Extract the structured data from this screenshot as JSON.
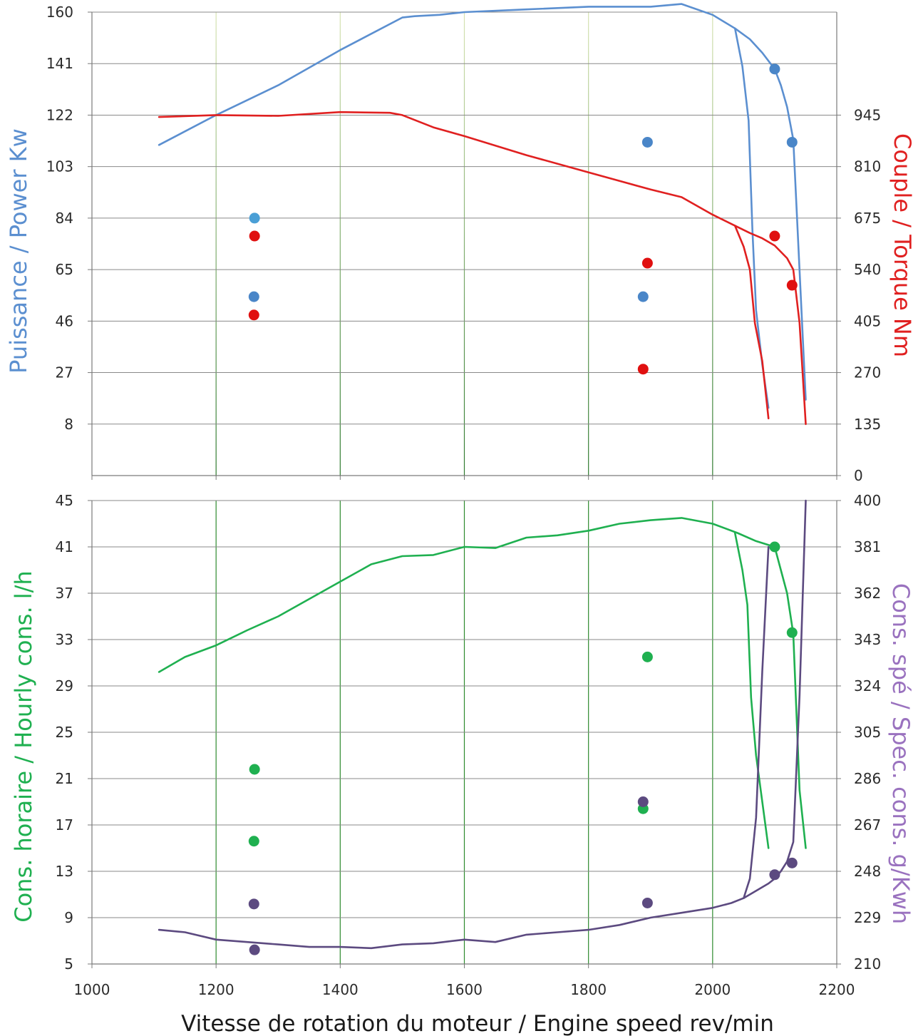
{
  "chart_data": [
    {
      "type": "line",
      "xlabel": "",
      "ylabel_left": "Puissance / Power Kw",
      "ylabel_right": "Couple / Torque Nm",
      "xlim": [
        1000,
        2200
      ],
      "ylim_left": [
        -11,
        160
      ],
      "ylim_right": [
        0,
        1215
      ],
      "left_ticks": [
        "160",
        "141",
        "122",
        "103",
        "84",
        "65",
        "46",
        "27",
        "8"
      ],
      "left_tick_values": [
        160,
        141,
        122,
        103,
        84,
        65,
        46,
        27,
        8
      ],
      "right_ticks": [
        "945",
        "810",
        "675",
        "540",
        "405",
        "270",
        "135",
        "0"
      ],
      "right_tick_values": [
        945,
        810,
        675,
        540,
        405,
        270,
        135,
        0
      ],
      "grid": true,
      "series": [
        {
          "axis": "left",
          "color": "#5b8fd0",
          "x": [
            1108,
            1200,
            1300,
            1400,
            1500,
            1520,
            1560,
            1600,
            1700,
            1800,
            1900,
            1950,
            2000,
            2036,
            2060,
            2080,
            2100,
            2110,
            2120,
            2130,
            2150
          ],
          "y": [
            111,
            122,
            133,
            146,
            158,
            158.5,
            159,
            160,
            161,
            162,
            162,
            163,
            159,
            154,
            150,
            145,
            139,
            133,
            125,
            113,
            17
          ]
        },
        {
          "axis": "left",
          "color": "#5b8fd0",
          "x": [
            2036,
            2048,
            2058,
            2064,
            2070,
            2080,
            2090
          ],
          "y": [
            154,
            140,
            120,
            80,
            50,
            30,
            14
          ]
        },
        {
          "axis": "right",
          "color": "#e02020",
          "x": [
            1108,
            1200,
            1300,
            1400,
            1480,
            1500,
            1550,
            1600,
            1700,
            1800,
            1900,
            1950,
            2000,
            2036,
            2060,
            2080,
            2100,
            2120,
            2130,
            2140,
            2150
          ],
          "y": [
            940,
            945,
            943,
            953,
            951,
            945,
            913,
            890,
            840,
            795,
            750,
            730,
            684,
            655,
            636,
            622,
            603,
            570,
            540,
            400,
            135
          ]
        },
        {
          "axis": "right",
          "color": "#e02020",
          "x": [
            2036,
            2050,
            2060,
            2068,
            2080,
            2090
          ],
          "y": [
            655,
            600,
            540,
            400,
            300,
            150
          ]
        }
      ],
      "points": [
        {
          "x": 1262,
          "y": 84,
          "axis": "left",
          "color": "#4a9fd6"
        },
        {
          "x": 1261,
          "y": 55,
          "axis": "left",
          "color": "#4a86c8"
        },
        {
          "x": 1895,
          "y": 112,
          "axis": "left",
          "color": "#4a86c8"
        },
        {
          "x": 1888,
          "y": 55,
          "axis": "left",
          "color": "#4a86c8"
        },
        {
          "x": 2100,
          "y": 139,
          "axis": "left",
          "color": "#4a86c8"
        },
        {
          "x": 2128,
          "y": 112,
          "axis": "left",
          "color": "#4a86c8"
        },
        {
          "x": 1262,
          "y": 628,
          "axis": "right",
          "color": "#e01010"
        },
        {
          "x": 1261,
          "y": 421,
          "axis": "right",
          "color": "#e01010"
        },
        {
          "x": 1895,
          "y": 557,
          "axis": "right",
          "color": "#e01010"
        },
        {
          "x": 1888,
          "y": 279,
          "axis": "right",
          "color": "#e01010"
        },
        {
          "x": 2100,
          "y": 628,
          "axis": "right",
          "color": "#e01010"
        },
        {
          "x": 2128,
          "y": 499,
          "axis": "right",
          "color": "#e01010"
        }
      ]
    },
    {
      "type": "line",
      "xlabel": "Vitesse de rotation du moteur / Engine speed rev/min",
      "ylabel_left": "Cons. horaire / Hourly cons. l/h",
      "ylabel_right": "Cons. spé / Spec. cons. g/Kwh",
      "xlim": [
        1000,
        2200
      ],
      "ylim_left": [
        5,
        45
      ],
      "ylim_right": [
        210,
        400
      ],
      "x_ticks": [
        "1000",
        "1200",
        "1400",
        "1600",
        "1800",
        "2000",
        "2200"
      ],
      "x_tick_values": [
        1000,
        1200,
        1400,
        1600,
        1800,
        2000,
        2200
      ],
      "left_ticks": [
        "45",
        "41",
        "37",
        "33",
        "29",
        "25",
        "21",
        "17",
        "13",
        "9",
        "5"
      ],
      "left_tick_values": [
        45,
        41,
        37,
        33,
        29,
        25,
        21,
        17,
        13,
        9,
        5
      ],
      "right_ticks": [
        "400",
        "381",
        "362",
        "343",
        "324",
        "305",
        "286",
        "267",
        "248",
        "229",
        "210"
      ],
      "right_tick_values": [
        400,
        381,
        362,
        343,
        324,
        305,
        286,
        267,
        248,
        229,
        210
      ],
      "grid": true,
      "series": [
        {
          "axis": "left",
          "color": "#1fb050",
          "x": [
            1108,
            1150,
            1200,
            1250,
            1300,
            1350,
            1400,
            1450,
            1500,
            1550,
            1600,
            1650,
            1700,
            1750,
            1800,
            1850,
            1900,
            1950,
            2000,
            2040,
            2070,
            2100,
            2110,
            2120,
            2130,
            2140,
            2150
          ],
          "y": [
            30.2,
            31.5,
            32.5,
            33.8,
            35,
            36.5,
            38,
            39.5,
            40.2,
            40.3,
            41,
            40.9,
            41.8,
            42,
            42.4,
            43,
            43.3,
            43.5,
            43,
            42.2,
            41.5,
            41,
            39,
            37,
            33.5,
            20,
            15
          ]
        },
        {
          "axis": "left",
          "color": "#1fb050",
          "x": [
            2036,
            2048,
            2056,
            2062,
            2070,
            2090
          ],
          "y": [
            42.2,
            39,
            36,
            28,
            23,
            15
          ]
        },
        {
          "axis": "right",
          "color": "#5c4a80",
          "x": [
            1108,
            1150,
            1200,
            1250,
            1300,
            1350,
            1400,
            1450,
            1500,
            1550,
            1600,
            1650,
            1700,
            1750,
            1800,
            1850,
            1900,
            1950,
            2000,
            2030,
            2050,
            2070,
            2090,
            2100,
            2110,
            2120,
            2130,
            2140,
            2150
          ],
          "y": [
            224,
            223,
            220,
            219,
            218,
            217,
            217,
            216.5,
            218,
            218.5,
            220,
            219,
            222,
            223,
            224,
            226,
            229,
            231,
            233,
            235,
            237,
            240,
            243,
            245,
            248,
            252,
            260,
            320,
            400
          ]
        },
        {
          "axis": "right",
          "color": "#5c4a80",
          "x": [
            2050,
            2060,
            2070,
            2080,
            2090
          ],
          "y": [
            237,
            245,
            270,
            330,
            381
          ]
        }
      ],
      "points": [
        {
          "x": 1262,
          "y": 21.8,
          "axis": "left",
          "color": "#1fb050"
        },
        {
          "x": 1261,
          "y": 15.6,
          "axis": "left",
          "color": "#1fb050"
        },
        {
          "x": 1895,
          "y": 31.5,
          "axis": "left",
          "color": "#1fb050"
        },
        {
          "x": 1888,
          "y": 18.4,
          "axis": "left",
          "color": "#1fb050"
        },
        {
          "x": 2100,
          "y": 41,
          "axis": "left",
          "color": "#1fb050"
        },
        {
          "x": 2128,
          "y": 33.6,
          "axis": "left",
          "color": "#1fb050"
        },
        {
          "x": 1262,
          "y": 215.8,
          "axis": "right",
          "color": "#5c4a80"
        },
        {
          "x": 1261,
          "y": 234.6,
          "axis": "right",
          "color": "#5c4a80"
        },
        {
          "x": 1895,
          "y": 235,
          "axis": "right",
          "color": "#5c4a80"
        },
        {
          "x": 1888,
          "y": 276.5,
          "axis": "right",
          "color": "#5c4a80"
        },
        {
          "x": 2100,
          "y": 246.6,
          "axis": "right",
          "color": "#5c4a80"
        },
        {
          "x": 2128,
          "y": 251.4,
          "axis": "right",
          "color": "#5c4a80"
        }
      ]
    }
  ],
  "colors": {
    "power": "#5b8fd0",
    "torque": "#e02020",
    "hourly": "#1fb050",
    "specific": "#5c4a80",
    "grid_h": "#8a8a8a",
    "grid_v_upper": "#d8e4b4",
    "grid_v_lower": "#2e8b2e"
  }
}
